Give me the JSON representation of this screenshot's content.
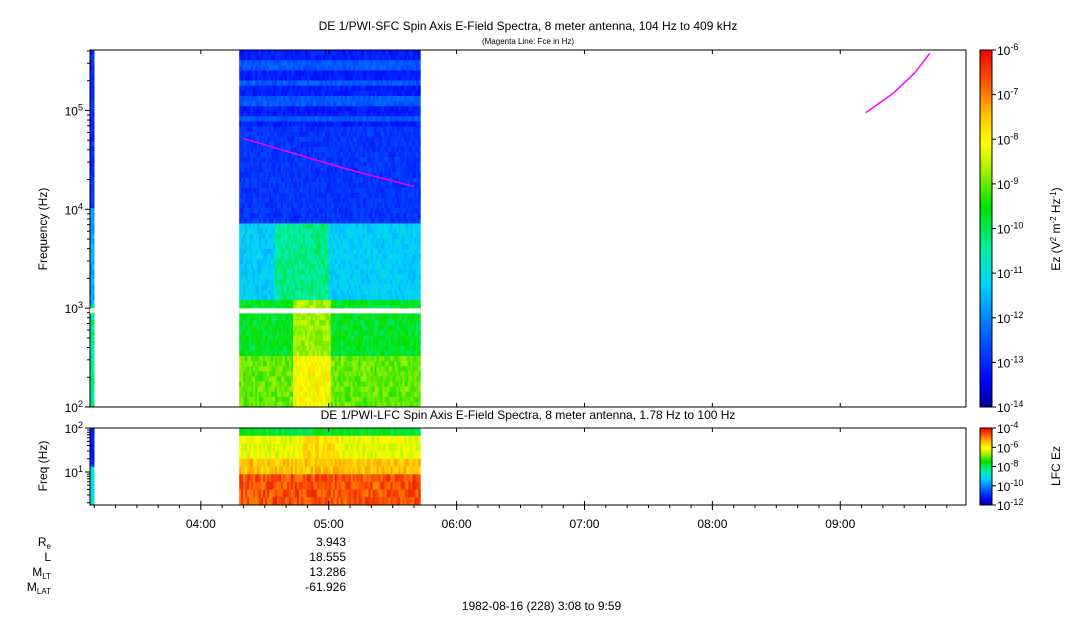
{
  "chart_data": [
    {
      "type": "heatmap",
      "title": "DE 1/PWI-SFC  Spin Axis E-Field Spectra, 8 meter antenna, 104 Hz to 409 kHz",
      "subtitle": "(Magenta Line: Fce in Hz)",
      "ylabel": "Frequency (Hz)",
      "y_scale": "log",
      "ylim": [
        100,
        409000
      ],
      "y_ticks": [
        {
          "value": 100,
          "base": "10",
          "exp": "2"
        },
        {
          "value": 1000,
          "base": "10",
          "exp": "3"
        },
        {
          "value": 10000,
          "base": "10",
          "exp": "4"
        },
        {
          "value": 100000,
          "base": "10",
          "exp": "5"
        }
      ],
      "xlim": [
        "03:08",
        "09:59"
      ],
      "colorbar": {
        "label": "Ez (V^2 m^-2 Hz^-1)",
        "label_base": "Ez (V",
        "label_parts": [
          "2",
          " m",
          "-2",
          " Hz",
          "-1",
          ")"
        ],
        "scale": "log",
        "range": [
          1e-14,
          1e-06
        ],
        "ticks": [
          {
            "value": 1e-06,
            "base": "10",
            "exp": "-6"
          },
          {
            "value": 1e-07,
            "base": "10",
            "exp": "-7"
          },
          {
            "value": 1e-08,
            "base": "10",
            "exp": "-8"
          },
          {
            "value": 1e-09,
            "base": "10",
            "exp": "-9"
          },
          {
            "value": 1e-10,
            "base": "10",
            "exp": "-10"
          },
          {
            "value": 1e-11,
            "base": "10",
            "exp": "-11"
          },
          {
            "value": 1e-12,
            "base": "10",
            "exp": "-12"
          },
          {
            "value": 1e-13,
            "base": "10",
            "exp": "-13"
          },
          {
            "value": 1e-14,
            "base": "10",
            "exp": "-14"
          }
        ]
      },
      "data_intervals": [
        {
          "start": "03:08",
          "end": "03:10"
        },
        {
          "start": "04:18",
          "end": "05:43"
        }
      ],
      "fce_series": [
        {
          "name": "Fce",
          "color": "#ff00ff",
          "points": [
            [
              "04:20",
              52000
            ],
            [
              "04:45",
              36000
            ],
            [
              "05:10",
              25000
            ],
            [
              "05:40",
              17000
            ]
          ]
        },
        {
          "name": "Fce",
          "color": "#ff00ff",
          "points": [
            [
              "09:12",
              95000
            ],
            [
              "09:25",
              150000
            ],
            [
              "09:35",
              240000
            ],
            [
              "09:42",
              380000
            ]
          ]
        }
      ]
    },
    {
      "type": "heatmap",
      "title": "DE 1/PWI-LFC  Spin Axis E-Field Spectra, 8 meter antenna, 1.78 Hz to 100 Hz",
      "ylabel": "Freq (Hz)",
      "y_scale": "log",
      "ylim": [
        1.78,
        100
      ],
      "y_ticks": [
        {
          "value": 10,
          "base": "10",
          "exp": "1"
        },
        {
          "value": 100,
          "base": "10",
          "exp": "2"
        }
      ],
      "xlim": [
        "03:08",
        "09:59"
      ],
      "colorbar": {
        "label": "LFC Ez",
        "scale": "log",
        "range": [
          1e-12,
          0.0001
        ],
        "ticks": [
          {
            "value": 0.0001,
            "base": "10",
            "exp": "-4"
          },
          {
            "value": 1e-06,
            "base": "10",
            "exp": "-6"
          },
          {
            "value": 1e-08,
            "base": "10",
            "exp": "-8"
          },
          {
            "value": 1e-10,
            "base": "10",
            "exp": "-10"
          },
          {
            "value": 1e-12,
            "base": "10",
            "exp": "-12"
          }
        ]
      },
      "data_intervals": [
        {
          "start": "03:08",
          "end": "03:10"
        },
        {
          "start": "04:18",
          "end": "05:43"
        }
      ],
      "x_ticks": [
        "04:00",
        "05:00",
        "06:00",
        "07:00",
        "08:00",
        "09:00"
      ]
    }
  ],
  "ephemeris": {
    "rows": [
      {
        "label": "R",
        "sub": "e",
        "value": "3.943"
      },
      {
        "label": "L",
        "sub": "",
        "value": "18.555"
      },
      {
        "label": "M",
        "sub": "LT",
        "value": "13.286"
      },
      {
        "label": "M",
        "sub": "LAT",
        "value": "-61.926"
      }
    ]
  },
  "footer": "1982-08-16 (228) 3:08 to 9:59",
  "colors": {
    "magenta_line": "#ff00ff",
    "axis": "#000000"
  }
}
